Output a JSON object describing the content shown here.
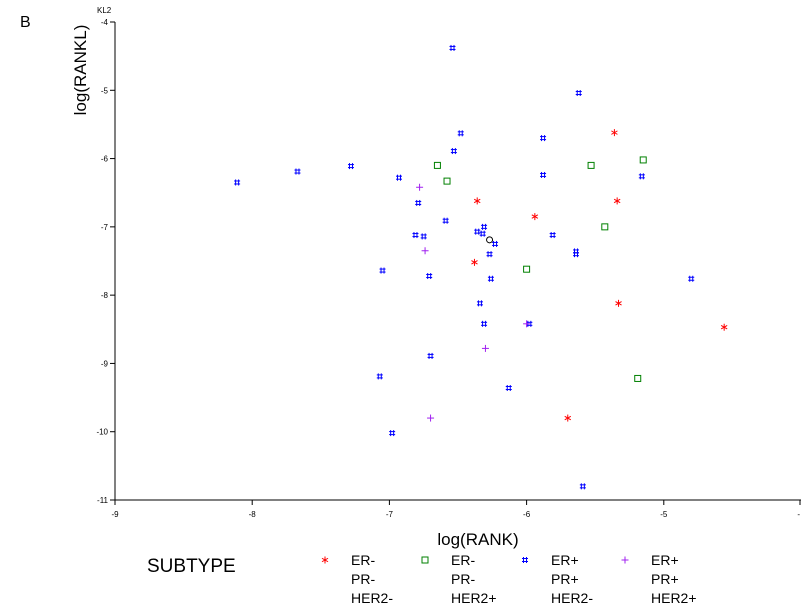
{
  "chart_data": {
    "type": "scatter",
    "panel_label": "B",
    "xlabel": "log(RANK)",
    "ylabel": "log(RANKL)",
    "ylabel_suffix": "KL2",
    "xlim": [
      -9,
      -4
    ],
    "ylim": [
      -11,
      -4
    ],
    "x_ticks": [
      -9,
      -8,
      -7,
      -6,
      -5,
      -4
    ],
    "x_tick_labels": [
      "-9",
      "-8",
      "-7",
      "-6",
      "-5",
      "-"
    ],
    "y_ticks": [
      -4,
      -5,
      -6,
      -7,
      -8,
      -9,
      -10,
      -11
    ],
    "y_tick_labels": [
      "-4",
      "-5",
      "-6",
      "-7",
      "-8",
      "-9",
      "-10",
      "-11"
    ],
    "legend_title": "SUBTYPE",
    "legend_position": "bottom",
    "series": [
      {
        "name_lines": [
          "ER-",
          "PR-",
          "HER2-"
        ],
        "symbol": "*",
        "color": "#ff0000",
        "points": [
          [
            -5.36,
            -5.62
          ],
          [
            -6.36,
            -6.62
          ],
          [
            -5.94,
            -6.85
          ],
          [
            -5.34,
            -6.62
          ],
          [
            -6.38,
            -7.52
          ],
          [
            -5.33,
            -8.12
          ],
          [
            -4.56,
            -8.47
          ],
          [
            -5.7,
            -9.8
          ]
        ]
      },
      {
        "name_lines": [
          "ER-",
          "PR-",
          "HER2+"
        ],
        "symbol": "square",
        "color": "#008000",
        "points": [
          [
            -6.65,
            -6.1
          ],
          [
            -6.58,
            -6.33
          ],
          [
            -5.53,
            -6.1
          ],
          [
            -5.15,
            -6.02
          ],
          [
            -5.43,
            -7.0
          ],
          [
            -6.0,
            -7.62
          ],
          [
            -5.19,
            -9.22
          ]
        ]
      },
      {
        "name_lines": [
          "ER+",
          "PR+",
          "HER2-"
        ],
        "symbol": "#",
        "color": "#0000ff",
        "points": [
          [
            -6.54,
            -4.38
          ],
          [
            -5.62,
            -5.04
          ],
          [
            -6.48,
            -5.63
          ],
          [
            -5.88,
            -5.7
          ],
          [
            -6.53,
            -5.89
          ],
          [
            -8.11,
            -6.35
          ],
          [
            -7.67,
            -6.19
          ],
          [
            -7.28,
            -6.11
          ],
          [
            -6.93,
            -6.28
          ],
          [
            -5.88,
            -6.24
          ],
          [
            -5.16,
            -6.26
          ],
          [
            -6.79,
            -6.65
          ],
          [
            -6.59,
            -6.91
          ],
          [
            -6.31,
            -7.0
          ],
          [
            -6.36,
            -7.07
          ],
          [
            -6.32,
            -7.1
          ],
          [
            -6.81,
            -7.12
          ],
          [
            -6.75,
            -7.14
          ],
          [
            -6.23,
            -7.25
          ],
          [
            -5.81,
            -7.12
          ],
          [
            -5.64,
            -7.36
          ],
          [
            -5.64,
            -7.4
          ],
          [
            -6.27,
            -7.4
          ],
          [
            -7.05,
            -7.64
          ],
          [
            -6.71,
            -7.72
          ],
          [
            -6.26,
            -7.76
          ],
          [
            -4.8,
            -7.76
          ],
          [
            -6.34,
            -8.12
          ],
          [
            -6.31,
            -8.42
          ],
          [
            -5.98,
            -8.42
          ],
          [
            -6.7,
            -8.89
          ],
          [
            -6.13,
            -9.36
          ],
          [
            -7.07,
            -9.19
          ],
          [
            -6.98,
            -10.02
          ],
          [
            -5.59,
            -10.8
          ]
        ]
      },
      {
        "name_lines": [
          "ER+",
          "PR+",
          "HER2+"
        ],
        "symbol": "+",
        "color": "#a020f0",
        "points": [
          [
            -6.78,
            -6.42
          ],
          [
            -6.74,
            -7.35
          ],
          [
            -6.0,
            -8.42
          ],
          [
            -6.3,
            -8.78
          ],
          [
            -6.7,
            -9.8
          ]
        ]
      }
    ],
    "annotations": [
      {
        "symbol": "circle",
        "color": "#000000",
        "point": [
          -6.27,
          -7.19
        ]
      }
    ]
  }
}
